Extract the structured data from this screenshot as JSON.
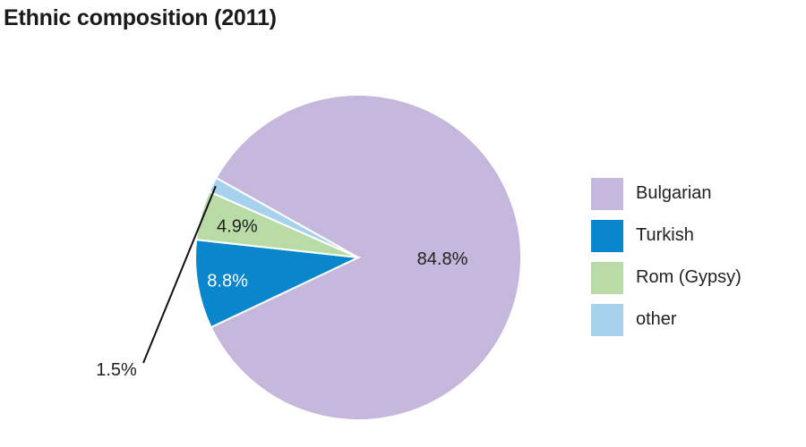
{
  "title": "Ethnic composition (2011)",
  "chart_data": {
    "type": "pie",
    "title": "Ethnic composition (2011)",
    "slices": [
      {
        "label": "Bulgarian",
        "value": 84.8,
        "value_label": "84.8%",
        "color": "#c5b8dc",
        "label_color": "#222222"
      },
      {
        "label": "Turkish",
        "value": 8.8,
        "value_label": "8.8%",
        "color": "#0a86cc",
        "label_color": "#ffffff"
      },
      {
        "label": "Rom (Gypsy)",
        "value": 4.9,
        "value_label": "4.9%",
        "color": "#b9dca7",
        "label_color": "#222222"
      },
      {
        "label": "other",
        "value": 1.5,
        "value_label": "1.5%",
        "color": "#a6d2ee",
        "label_color": "#222222"
      }
    ],
    "legend_position": "right"
  }
}
